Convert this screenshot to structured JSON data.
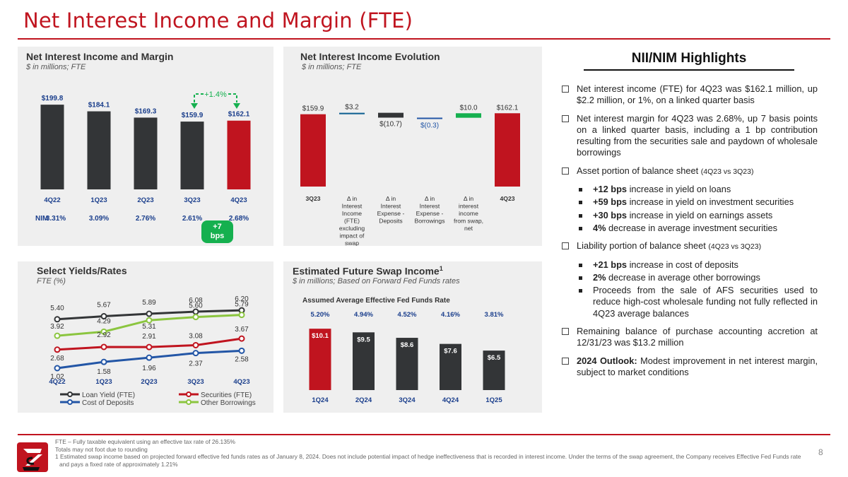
{
  "page_title": "Net Interest Income and Margin (FTE)",
  "page_number": "8",
  "colors": {
    "brand_red": "#c0141f",
    "dark_bar": "#333537",
    "blue": "#2356a6",
    "green": "#15b04f",
    "wf_blue": "#0e5f91"
  },
  "panel_nii": {
    "title": "Net Interest Income and Margin",
    "subtitle": "$ in millions; FTE",
    "change_label": "+1.4%",
    "nim_label": "NIM",
    "bps_badge": "+7 bps"
  },
  "panel_evolution": {
    "title": "Net Interest Income Evolution",
    "subtitle": "$ in millions; FTE"
  },
  "panel_yields": {
    "title": "Select Yields/Rates",
    "subtitle": "FTE (%)"
  },
  "panel_swap": {
    "title": "Estimated Future Swap Income",
    "title_sup": "1",
    "subtitle": "$ in millions; Based on Forward Fed Funds rates",
    "fed_label": "Assumed Average Effective Fed Funds Rate"
  },
  "chart_data": [
    {
      "type": "bar",
      "categories": [
        "4Q22",
        "1Q23",
        "2Q23",
        "3Q23",
        "4Q23"
      ],
      "values": [
        199.8,
        184.1,
        169.3,
        159.9,
        162.1
      ],
      "value_labels": [
        "$199.8",
        "$184.1",
        "$169.3",
        "$159.9",
        "$162.1"
      ],
      "nim": [
        "3.31%",
        "3.09%",
        "2.76%",
        "2.61%",
        "2.68%"
      ],
      "highlight": "4Q23"
    },
    {
      "type": "bar",
      "subtype": "waterfall",
      "categories": [
        "3Q23",
        "Δ in Interest Income (FTE) excluding impact of swap",
        "Δ in Interest Expense - Deposits",
        "Δ in Interest Expense - Borrowings",
        "Δ in interest income from swap, net",
        "4Q23"
      ],
      "values": [
        159.9,
        3.2,
        -10.7,
        -0.3,
        10.0,
        162.1
      ],
      "value_labels": [
        "$159.9",
        "$3.2",
        "$(10.7)",
        "$(0.3)",
        "$10.0",
        "$162.1"
      ]
    },
    {
      "type": "line",
      "x": [
        "4Q22",
        "1Q23",
        "2Q23",
        "3Q23",
        "4Q23"
      ],
      "series": [
        {
          "name": "Loan Yield (FTE)",
          "values": [
            5.4,
            5.67,
            5.89,
            6.08,
            6.2
          ],
          "labels": [
            "5.40",
            "5.67",
            "5.89",
            "6.08",
            "6.20"
          ],
          "color": "#333537"
        },
        {
          "name": "Other Borrowings",
          "values": [
            3.92,
            4.29,
            5.31,
            5.6,
            5.79
          ],
          "labels": [
            "3.92",
            "4.29",
            "5.31",
            "5.60",
            "5.79"
          ],
          "color": "#8bc53f"
        },
        {
          "name": "Securities (FTE)",
          "values": [
            2.68,
            2.92,
            2.91,
            3.08,
            3.67
          ],
          "labels": [
            "2.68",
            "2.92",
            "2.91",
            "3.08",
            "3.67"
          ],
          "color": "#c0141f"
        },
        {
          "name": "Cost of Deposits",
          "values": [
            1.02,
            1.58,
            1.96,
            2.37,
            2.58
          ],
          "labels": [
            "1.02",
            "1.58",
            "1.96",
            "2.37",
            "2.58"
          ],
          "color": "#2356a6"
        }
      ]
    },
    {
      "type": "bar",
      "categories": [
        "1Q24",
        "2Q24",
        "3Q24",
        "4Q24",
        "1Q25"
      ],
      "values": [
        10.1,
        9.5,
        8.6,
        7.6,
        6.5
      ],
      "value_labels": [
        "$10.1",
        "$9.5",
        "$8.6",
        "$7.6",
        "$6.5"
      ],
      "fed_funds_rates": [
        "5.20%",
        "4.94%",
        "4.52%",
        "4.16%",
        "3.81%"
      ]
    }
  ],
  "highlights": {
    "title": "NII/NIM Highlights",
    "b1": "Net interest income (FTE) for 4Q23 was $162.1 million, up $2.2 million, or 1%, on a linked quarter basis",
    "b2": "Net interest margin for 4Q23 was 2.68%, up 7 basis points on a linked quarter basis, including a 1 bp contribution resulting from the securities sale and paydown of wholesale borrowings",
    "b3": "Asset portion of balance sheet",
    "b3_small": "(4Q23 vs 3Q23)",
    "asset_items": [
      {
        "bold": "+12 bps",
        "text": " increase in yield on loans"
      },
      {
        "bold": "+59 bps",
        "text": " increase in yield on investment securities"
      },
      {
        "bold": "+30 bps",
        "text": " increase in yield on earnings assets"
      },
      {
        "bold": "4%",
        "text": " decrease in average investment securities"
      }
    ],
    "b4": "Liability portion of balance sheet",
    "b4_small": "(4Q23 vs 3Q23)",
    "liability_items": [
      {
        "bold": "+21 bps",
        "text": " increase in cost of deposits"
      },
      {
        "bold": "2%",
        "text": " decrease in average other borrowings"
      },
      {
        "bold": "",
        "text": "Proceeds from the sale of AFS securities used to reduce high-cost wholesale funding not fully reflected in 4Q23 average balances"
      }
    ],
    "b5": "Remaining balance of purchase accounting accretion at 12/31/23 was $13.2 million",
    "b6_bold": "2024 Outlook:",
    "b6_text": " Modest improvement in net interest margin, subject to market conditions"
  },
  "footnotes": {
    "f1": "FTE – Fully taxable equivalent using an effective tax rate of 26.135%",
    "f2": "Totals may not foot due to rounding",
    "f3": "1 Estimated swap income based on projected forward effective fed funds rates as of January 8, 2024. Does not include potential impact of hedge ineffectiveness that is recorded in interest income. Under the terms of the swap agreement, the Company receives Effective Fed Funds rate and pays a fixed rate of approximately 1.21%"
  }
}
